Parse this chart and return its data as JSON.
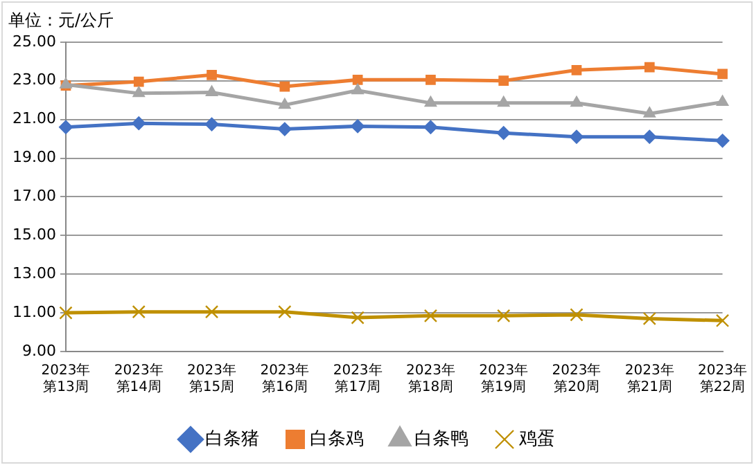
{
  "chart_data": {
    "type": "line",
    "title": "单位：元/公斤",
    "categories": [
      "2023年第13周",
      "2023年第14周",
      "2023年第15周",
      "2023年第16周",
      "2023年第17周",
      "2023年第18周",
      "2023年第19周",
      "2023年第20周",
      "2023年第21周",
      "2023年第22周"
    ],
    "series": [
      {
        "name": "白条猪",
        "color": "#4472c4",
        "marker": "diamond",
        "values": [
          20.6,
          20.8,
          20.75,
          20.5,
          20.65,
          20.6,
          20.3,
          20.1,
          20.1,
          19.9
        ]
      },
      {
        "name": "白条鸡",
        "color": "#ed7d31",
        "marker": "square",
        "values": [
          22.75,
          22.95,
          23.3,
          22.7,
          23.05,
          23.05,
          23.0,
          23.55,
          23.7,
          23.35
        ]
      },
      {
        "name": "白条鸭",
        "color": "#a5a5a5",
        "marker": "triangle",
        "values": [
          22.8,
          22.35,
          22.4,
          21.75,
          22.5,
          21.85,
          21.85,
          21.85,
          21.3,
          21.9
        ]
      },
      {
        "name": "鸡蛋",
        "color": "#bf9000",
        "marker": "cross",
        "values": [
          11.0,
          11.05,
          11.05,
          11.05,
          10.75,
          10.85,
          10.85,
          10.9,
          10.7,
          10.6
        ]
      }
    ],
    "ylim": [
      9,
      25
    ],
    "yticks": [
      {
        "value": 9,
        "label": "9.00"
      },
      {
        "value": 11,
        "label": "11.00"
      },
      {
        "value": 13,
        "label": "13.00"
      },
      {
        "value": 15,
        "label": "15.00"
      },
      {
        "value": 17,
        "label": "17.00"
      },
      {
        "value": 19,
        "label": "19.00"
      },
      {
        "value": 21,
        "label": "21.00"
      },
      {
        "value": 23,
        "label": "23.00"
      },
      {
        "value": 25,
        "label": "25.00"
      }
    ],
    "grid": "y",
    "legend": "bottom"
  }
}
